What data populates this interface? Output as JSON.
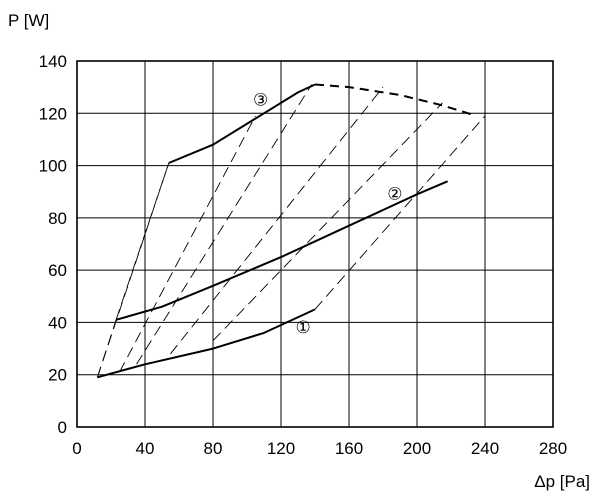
{
  "chart_data": {
    "type": "line",
    "xlabel": "Δp [Pa]",
    "ylabel": "P [W]",
    "xlim": [
      0,
      280
    ],
    "ylim": [
      0,
      140
    ],
    "x_ticks": [
      0,
      40,
      80,
      120,
      160,
      200,
      240,
      280
    ],
    "y_ticks": [
      0,
      20,
      40,
      60,
      80,
      100,
      120,
      140
    ],
    "grid": true,
    "series": [
      {
        "name": "①",
        "style": "solid",
        "points": [
          [
            12,
            19
          ],
          [
            40,
            24
          ],
          [
            80,
            30
          ],
          [
            110,
            36
          ],
          [
            140,
            45
          ]
        ]
      },
      {
        "name": "②",
        "style": "solid",
        "points": [
          [
            23,
            41
          ],
          [
            50,
            46
          ],
          [
            80,
            54
          ],
          [
            120,
            65
          ],
          [
            160,
            77
          ],
          [
            200,
            89
          ],
          [
            218,
            94
          ]
        ]
      },
      {
        "name": "③",
        "style": "solid",
        "points": [
          [
            54,
            101
          ],
          [
            80,
            108
          ],
          [
            110,
            120
          ],
          [
            130,
            128
          ],
          [
            140,
            131
          ]
        ]
      },
      {
        "name": "",
        "style": "dashed",
        "points": [
          [
            140,
            131
          ],
          [
            160,
            130
          ],
          [
            190,
            127
          ],
          [
            215,
            123
          ],
          [
            235,
            119
          ]
        ]
      }
    ],
    "dashed_lines": [
      [
        [
          12,
          19
        ],
        [
          54,
          101
        ]
      ],
      [
        [
          12,
          19
        ],
        [
          23,
          41
        ]
      ],
      [
        [
          23,
          41
        ],
        [
          54,
          101
        ]
      ],
      [
        [
          25,
          21
        ],
        [
          105,
          119
        ]
      ],
      [
        [
          35,
          24
        ],
        [
          138,
          131
        ]
      ],
      [
        [
          55,
          28
        ],
        [
          180,
          130
        ]
      ],
      [
        [
          80,
          33
        ],
        [
          215,
          124
        ]
      ],
      [
        [
          140,
          45
        ],
        [
          240,
          119
        ]
      ]
    ],
    "curve_labels": [
      "①",
      "②",
      "③"
    ]
  }
}
